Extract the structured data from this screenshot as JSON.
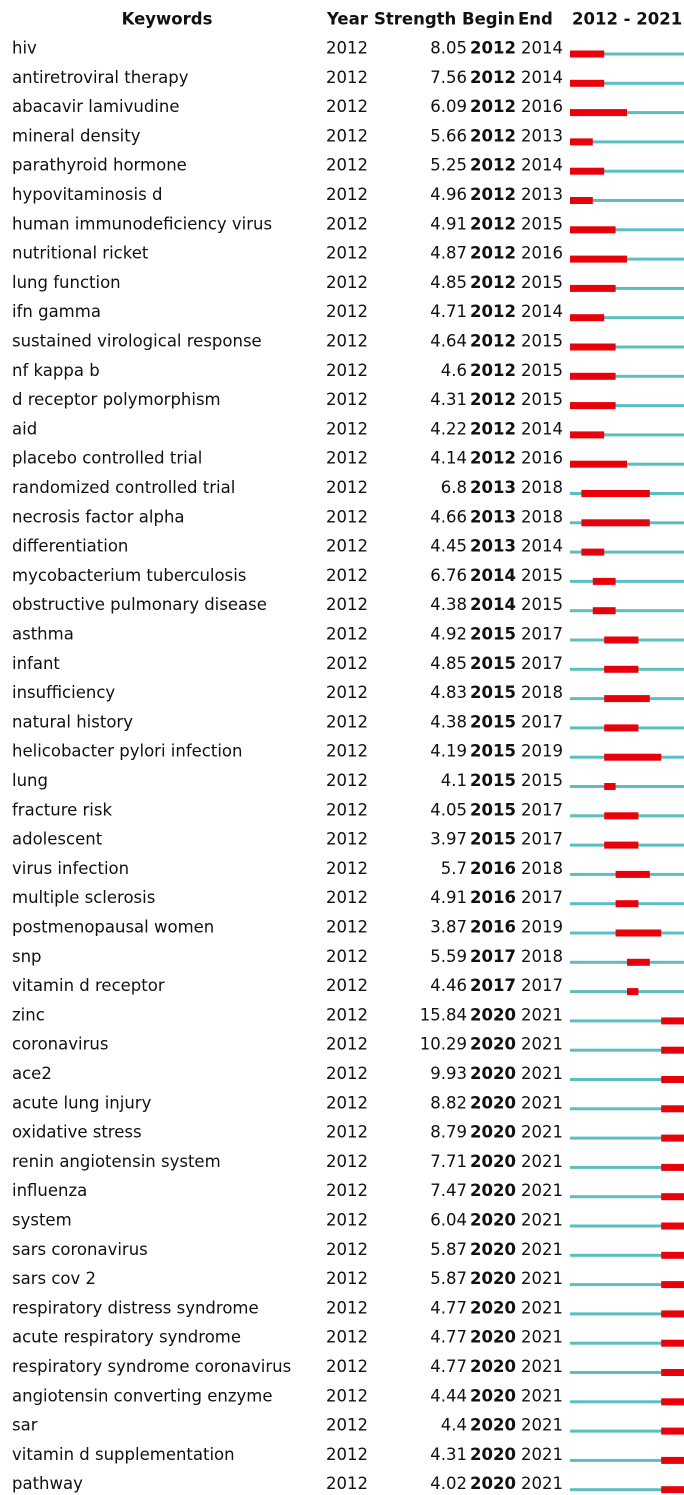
{
  "table": {
    "headers": [
      "Keywords",
      "Year",
      "Strength",
      "Begin",
      "End",
      "2012 - 2021"
    ],
    "xlim": [
      2012,
      2021
    ],
    "base_color": "#5bbfbf",
    "burst_color": "#e8000b",
    "rows": [
      [
        "hiv",
        2012,
        8.05,
        2012,
        2014
      ],
      [
        "antiretroviral therapy",
        2012,
        7.56,
        2012,
        2014
      ],
      [
        "abacavir lamivudine",
        2012,
        6.09,
        2012,
        2016
      ],
      [
        "mineral density",
        2012,
        5.66,
        2012,
        2013
      ],
      [
        "parathyroid hormone",
        2012,
        5.25,
        2012,
        2014
      ],
      [
        "hypovitaminosis d",
        2012,
        4.96,
        2012,
        2013
      ],
      [
        "human immunodeficiency virus",
        2012,
        4.91,
        2012,
        2015
      ],
      [
        "nutritional ricket",
        2012,
        4.87,
        2012,
        2016
      ],
      [
        "lung function",
        2012,
        4.85,
        2012,
        2015
      ],
      [
        "ifn gamma",
        2012,
        4.71,
        2012,
        2014
      ],
      [
        "sustained virological response",
        2012,
        4.64,
        2012,
        2015
      ],
      [
        "nf kappa b",
        2012,
        4.6,
        2012,
        2015
      ],
      [
        "d receptor polymorphism",
        2012,
        4.31,
        2012,
        2015
      ],
      [
        "aid",
        2012,
        4.22,
        2012,
        2014
      ],
      [
        "placebo controlled trial",
        2012,
        4.14,
        2012,
        2016
      ],
      [
        "randomized controlled trial",
        2012,
        6.8,
        2013,
        2018
      ],
      [
        "necrosis factor alpha",
        2012,
        4.66,
        2013,
        2018
      ],
      [
        "differentiation",
        2012,
        4.45,
        2013,
        2014
      ],
      [
        "mycobacterium tuberculosis",
        2012,
        6.76,
        2014,
        2015
      ],
      [
        "obstructive pulmonary disease",
        2012,
        4.38,
        2014,
        2015
      ],
      [
        "asthma",
        2012,
        4.92,
        2015,
        2017
      ],
      [
        "infant",
        2012,
        4.85,
        2015,
        2017
      ],
      [
        "insufficiency",
        2012,
        4.83,
        2015,
        2018
      ],
      [
        "natural history",
        2012,
        4.38,
        2015,
        2017
      ],
      [
        "helicobacter pylori infection",
        2012,
        4.19,
        2015,
        2019
      ],
      [
        "lung",
        2012,
        4.1,
        2015,
        2015
      ],
      [
        "fracture risk",
        2012,
        4.05,
        2015,
        2017
      ],
      [
        "adolescent",
        2012,
        3.97,
        2015,
        2017
      ],
      [
        "virus infection",
        2012,
        5.7,
        2016,
        2018
      ],
      [
        "multiple sclerosis",
        2012,
        4.91,
        2016,
        2017
      ],
      [
        "postmenopausal women",
        2012,
        3.87,
        2016,
        2019
      ],
      [
        "snp",
        2012,
        5.59,
        2017,
        2018
      ],
      [
        "vitamin d receptor",
        2012,
        4.46,
        2017,
        2017
      ],
      [
        "zinc",
        2012,
        15.84,
        2020,
        2021
      ],
      [
        "coronavirus",
        2012,
        10.29,
        2020,
        2021
      ],
      [
        "ace2",
        2012,
        9.93,
        2020,
        2021
      ],
      [
        "acute lung injury",
        2012,
        8.82,
        2020,
        2021
      ],
      [
        "oxidative stress",
        2012,
        8.79,
        2020,
        2021
      ],
      [
        "renin angiotensin system",
        2012,
        7.71,
        2020,
        2021
      ],
      [
        "influenza",
        2012,
        7.47,
        2020,
        2021
      ],
      [
        "system",
        2012,
        6.04,
        2020,
        2021
      ],
      [
        "sars coronavirus",
        2012,
        5.87,
        2020,
        2021
      ],
      [
        "sars cov 2",
        2012,
        5.87,
        2020,
        2021
      ],
      [
        "respiratory distress syndrome",
        2012,
        4.77,
        2020,
        2021
      ],
      [
        "acute respiratory syndrome",
        2012,
        4.77,
        2020,
        2021
      ],
      [
        "respiratory syndrome coronavirus",
        2012,
        4.77,
        2020,
        2021
      ],
      [
        "angiotensin converting enzyme",
        2012,
        4.44,
        2020,
        2021
      ],
      [
        "sar",
        2012,
        4.4,
        2020,
        2021
      ],
      [
        "vitamin d supplementation",
        2012,
        4.31,
        2020,
        2021
      ],
      [
        "pathway",
        2012,
        4.02,
        2020,
        2021
      ]
    ]
  }
}
